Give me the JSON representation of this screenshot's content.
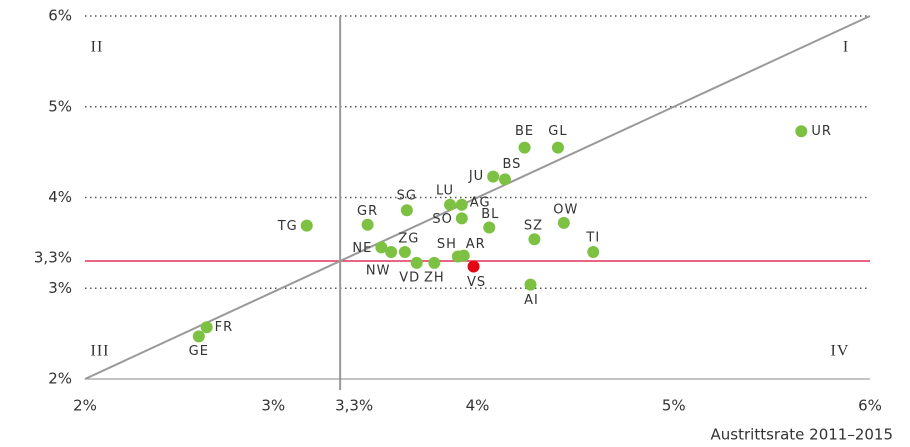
{
  "chart_data": {
    "type": "scatter",
    "x_label": "Austrittsrate 2011–2015",
    "quadrants": [
      "I",
      "II",
      "III",
      "IV"
    ],
    "xlim": [
      2,
      6
    ],
    "ylim": [
      2,
      6
    ],
    "xticks": [
      {
        "value": 2,
        "label": "2%"
      },
      {
        "value": 3,
        "label": "3%"
      },
      {
        "value": 3.3,
        "label": "3,3%"
      },
      {
        "value": 4,
        "label": "4%"
      },
      {
        "value": 5,
        "label": "5%"
      },
      {
        "value": 6,
        "label": "6%"
      }
    ],
    "yticks": [
      {
        "value": 2,
        "label": "2%"
      },
      {
        "value": 3,
        "label": "3%"
      },
      {
        "value": 3.3,
        "label": "3,3%"
      },
      {
        "value": 4,
        "label": "4%"
      },
      {
        "value": 5,
        "label": "5%"
      },
      {
        "value": 6,
        "label": "6%"
      }
    ],
    "colors": {
      "points": "#7dc142",
      "highlight": "#e30613",
      "highlight_line": "#e0325a",
      "reference": "#999999"
    },
    "highlight": "VS",
    "labels": [
      "UR",
      "BE",
      "GL",
      "BS",
      "JU",
      "LU",
      "AG",
      "SG",
      "SO",
      "GR",
      "TG",
      "BL",
      "OW",
      "SZ",
      "TI",
      "NE",
      "ZG",
      "NW",
      "VD",
      "ZH",
      "SH",
      "AR",
      "VS",
      "AI",
      "FR",
      "GE"
    ],
    "x": [
      5.65,
      4.24,
      4.41,
      4.14,
      4.08,
      3.86,
      3.92,
      3.64,
      3.92,
      3.44,
      3.13,
      4.06,
      4.44,
      4.29,
      4.59,
      3.51,
      3.63,
      3.56,
      3.69,
      3.78,
      3.9,
      3.93,
      3.98,
      4.27,
      2.62,
      2.58
    ],
    "y": [
      4.73,
      4.55,
      4.55,
      4.2,
      4.23,
      3.92,
      3.92,
      3.86,
      3.77,
      3.7,
      3.69,
      3.67,
      3.72,
      3.54,
      3.4,
      3.45,
      3.4,
      3.4,
      3.28,
      3.28,
      3.35,
      3.36,
      3.24,
      3.04,
      2.57,
      2.47
    ]
  }
}
